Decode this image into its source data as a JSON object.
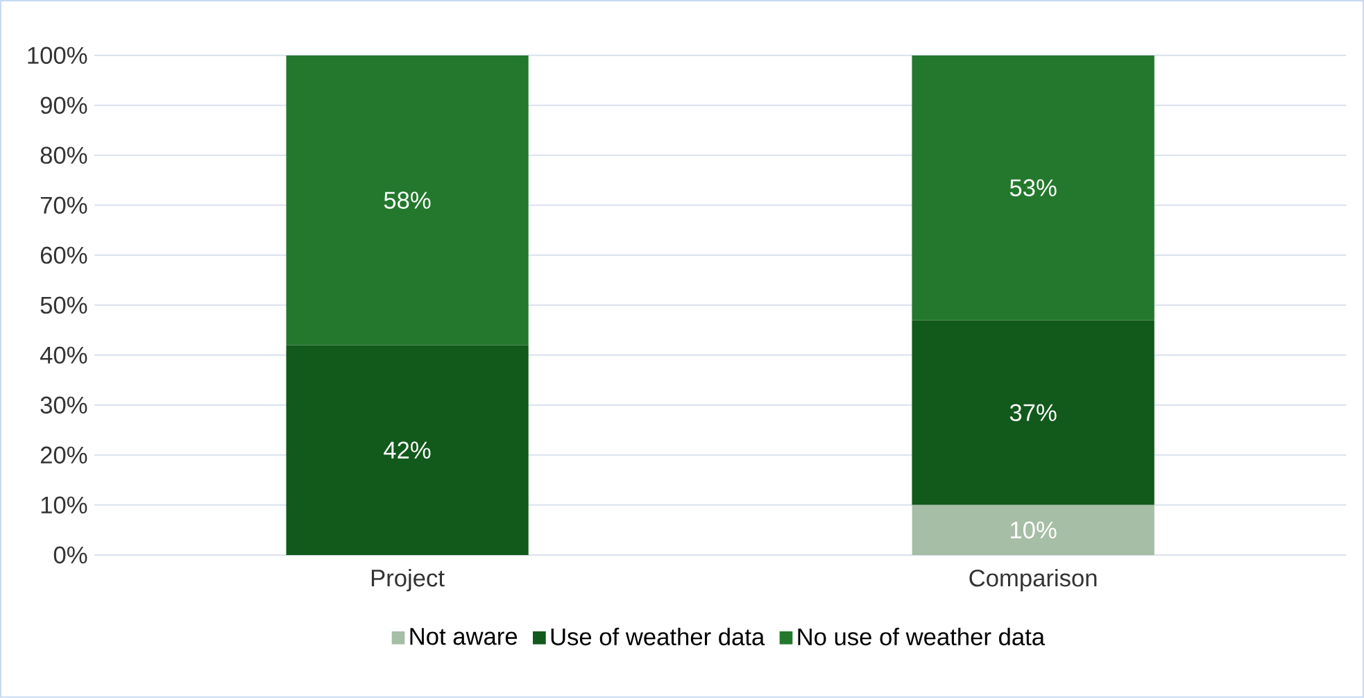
{
  "chart_data": {
    "type": "bar",
    "stacked": true,
    "categories": [
      "Project",
      "Comparison"
    ],
    "series": [
      {
        "name": "Not aware",
        "color": "#a6bda6",
        "values": [
          0,
          10
        ],
        "value_labels": [
          null,
          "10%"
        ]
      },
      {
        "name": "Use of weather data",
        "color": "#12591c",
        "values": [
          42,
          37
        ],
        "value_labels": [
          "42%",
          "37%"
        ]
      },
      {
        "name": "No use of weather data",
        "color": "#23782d",
        "values": [
          58,
          53
        ],
        "value_labels": [
          "58%",
          "53%"
        ]
      }
    ],
    "ylim": [
      0,
      100
    ],
    "yticks": [
      {
        "value": 0,
        "label": "0%"
      },
      {
        "value": 10,
        "label": "10%"
      },
      {
        "value": 20,
        "label": "20%"
      },
      {
        "value": 30,
        "label": "30%"
      },
      {
        "value": 40,
        "label": "40%"
      },
      {
        "value": 50,
        "label": "50%"
      },
      {
        "value": 60,
        "label": "60%"
      },
      {
        "value": 70,
        "label": "70%"
      },
      {
        "value": 80,
        "label": "80%"
      },
      {
        "value": 90,
        "label": "90%"
      },
      {
        "value": 100,
        "label": "100%"
      }
    ],
    "grid": "y",
    "legend": "bottom"
  }
}
